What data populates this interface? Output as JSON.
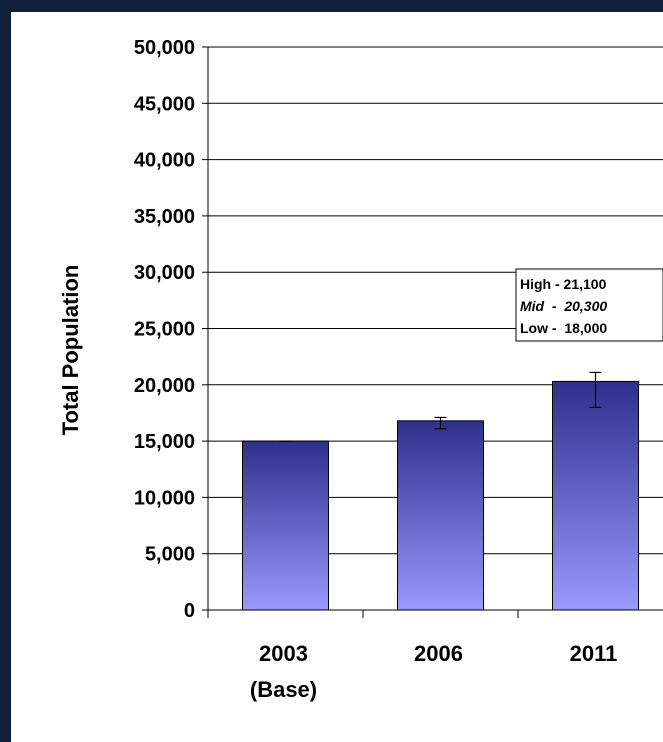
{
  "chart_data": {
    "type": "bar",
    "categories": [
      "2003",
      "2006",
      "2011"
    ],
    "category_sublabels": [
      "(Base)",
      "",
      ""
    ],
    "values": [
      15000,
      16800,
      20300
    ],
    "error_bars": [
      {
        "low": 15000,
        "high": 15000
      },
      {
        "low": 16100,
        "high": 17100
      },
      {
        "low": 18000,
        "high": 21100
      }
    ],
    "ylabel": "Total Population",
    "xlabel": "",
    "ylim": [
      0,
      50000
    ],
    "yticks": [
      "0",
      "5,000",
      "10,000",
      "15,000",
      "20,000",
      "25,000",
      "30,000",
      "35,000",
      "40,000",
      "45,000",
      "50,000"
    ],
    "ytick_values": [
      0,
      5000,
      10000,
      15000,
      20000,
      25000,
      30000,
      35000,
      40000,
      45000,
      50000
    ],
    "grid": true,
    "bar_gradient": {
      "top": "#2f2f8c",
      "bottom": "#9999ff"
    },
    "annotation": {
      "lines": [
        "High - 21,100",
        "Mid  -  20,300",
        "Low -  18,000"
      ]
    }
  }
}
